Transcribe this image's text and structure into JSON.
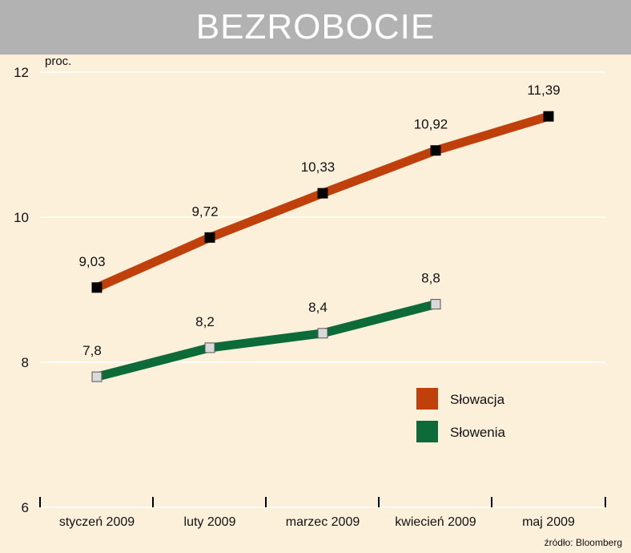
{
  "chart_data": {
    "type": "line",
    "title": "BEZROBOCIE",
    "ylabel": "proc.",
    "xlabel": "",
    "source": "źródło: Bloomberg",
    "categories": [
      "styczeń 2009",
      "luty 2009",
      "marzec 2009",
      "kwiecień 2009",
      "maj 2009"
    ],
    "ylim": [
      6,
      12
    ],
    "yticks": [
      "6",
      "8",
      "10",
      "12"
    ],
    "grid": true,
    "legend_position": "center-right",
    "series": [
      {
        "name": "Słowacja",
        "color": "#c0400c",
        "marker": "#000000",
        "values": [
          9.03,
          9.72,
          10.33,
          10.92,
          11.39
        ],
        "labels": [
          "9,03",
          "9,72",
          "10,33",
          "10,92",
          "11,39"
        ]
      },
      {
        "name": "Słowenia",
        "color": "#0d6b3a",
        "marker": "#d9d9d9",
        "values": [
          7.8,
          8.2,
          8.4,
          8.8,
          null
        ],
        "labels": [
          "7,8",
          "8,2",
          "8,4",
          "8,8",
          ""
        ]
      }
    ]
  }
}
